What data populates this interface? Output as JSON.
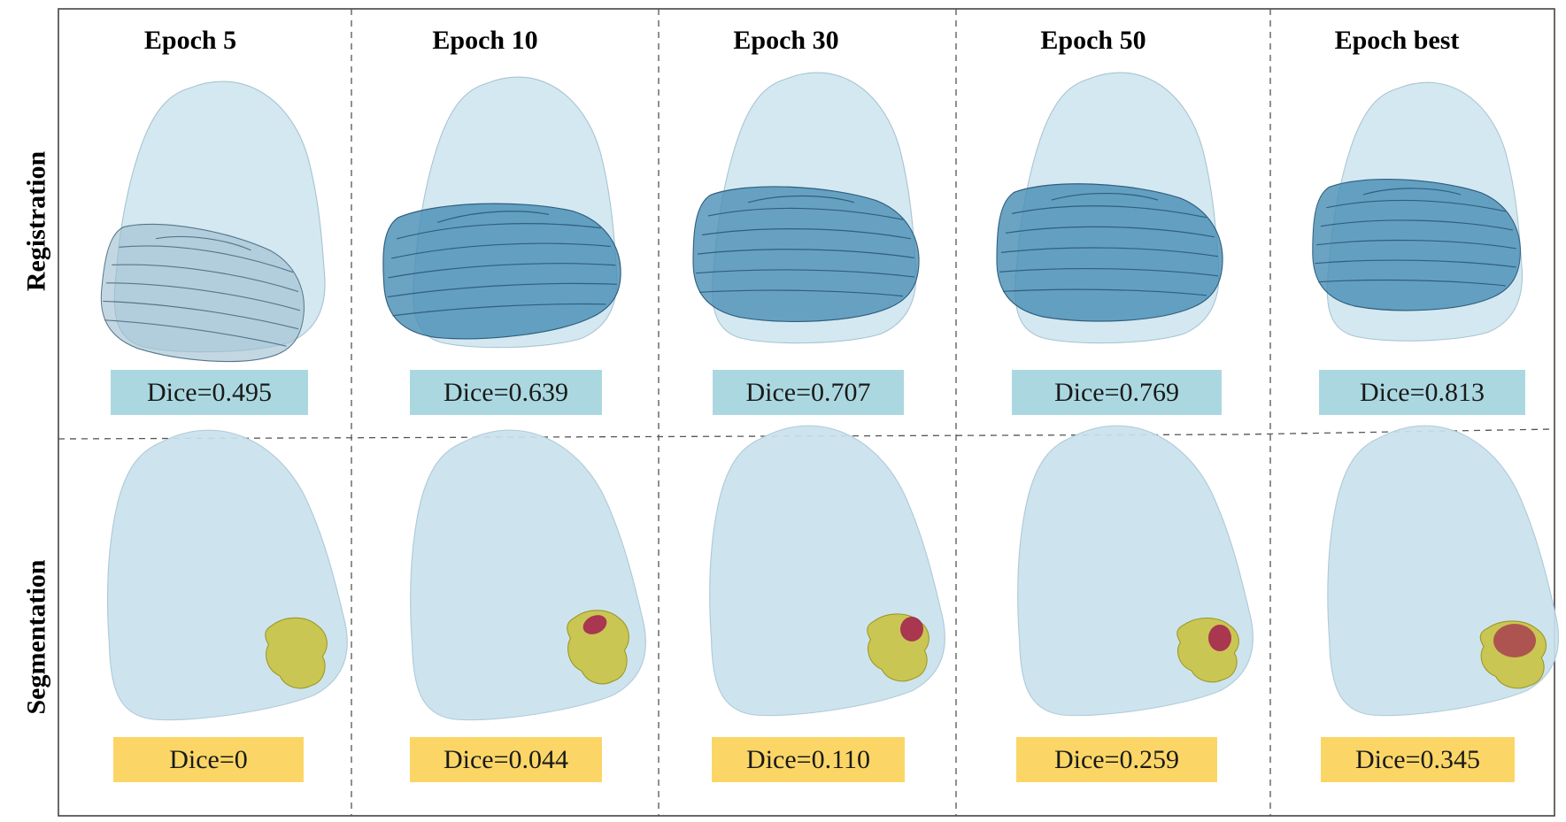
{
  "figure": {
    "row_labels": [
      "Registration",
      "Segmentation"
    ],
    "columns": [
      {
        "title": "Epoch 5"
      },
      {
        "title": "Epoch 10"
      },
      {
        "title": "Epoch 30"
      },
      {
        "title": "Epoch 50"
      },
      {
        "title": "Epoch best"
      }
    ],
    "registration_dice": [
      "Dice=0.495",
      "Dice=0.639",
      "Dice=0.707",
      "Dice=0.769",
      "Dice=0.813"
    ],
    "segmentation_dice": [
      "Dice=0",
      "Dice=0.044",
      "Dice=0.110",
      "Dice=0.259",
      "Dice=0.345"
    ],
    "colors": {
      "organ_fill": "#c9e2ee",
      "organ_stroke": "#a8c4d2",
      "registered_fill": "#4b8fb6",
      "registered_stroke": "#2f5f7e",
      "lesion_fill": "#c9c23f",
      "prediction_fill": "#a3234f",
      "reg_box": "#abd8e0",
      "seg_box": "#fbd666",
      "border": "#444444",
      "divider": "#555555"
    },
    "registration_alignment": [
      0.495,
      0.639,
      0.707,
      0.769,
      0.813
    ],
    "segmentation_overlap": [
      0,
      0.044,
      0.11,
      0.259,
      0.345
    ]
  }
}
